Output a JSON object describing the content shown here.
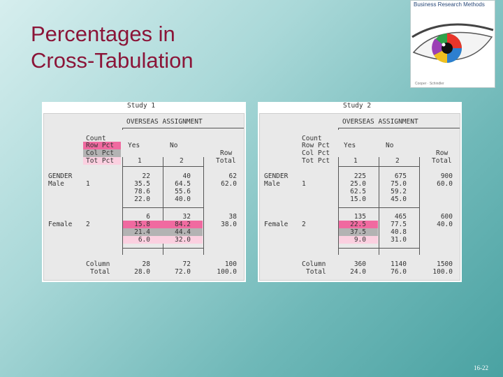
{
  "slide": {
    "title_line1": "Percentages in",
    "title_line2": "Cross-Tabulation",
    "number": "16-22"
  },
  "book": {
    "title": "Business Research Methods",
    "authors": "Cooper · Schindler"
  },
  "colors": {
    "title": "#8b1538",
    "row_pct": "#f06aa0",
    "col_pct": "#b3b3b3",
    "tot_pct": "#fbd0e0"
  },
  "tables": [
    {
      "study": "Study 1",
      "header": "OVERSEAS ASSIGNMENT",
      "legend": [
        "Count",
        "Row Pct",
        "Col Pct",
        "Tot Pct"
      ],
      "col_yes": "Yes",
      "col_no": "No",
      "row_total_l1": "Row",
      "row_total_l2": "Total",
      "code_yes": "1",
      "code_no": "2",
      "gender": "GENDER",
      "male": {
        "label": "Male",
        "code": "1",
        "yes": [
          "22",
          "35.5",
          "78.6",
          "22.0"
        ],
        "no": [
          "40",
          "64.5",
          "55.6",
          "40.0"
        ],
        "total": [
          "62",
          "62.0"
        ]
      },
      "female": {
        "label": "Female",
        "code": "2",
        "yes": [
          "6",
          "15.8",
          "21.4",
          "6.0"
        ],
        "no": [
          "32",
          "84.2",
          "44.4",
          "32.0"
        ],
        "total": [
          "38",
          "38.0"
        ]
      },
      "column_l1": "Column",
      "column_l2": "Total",
      "col_totals": {
        "yes": [
          "28",
          "28.0"
        ],
        "no": [
          "72",
          "72.0"
        ],
        "all": [
          "100",
          "100.0"
        ]
      }
    },
    {
      "study": "Study 2",
      "header": "OVERSEAS ASSIGNMENT",
      "legend": [
        "Count",
        "Row Pct",
        "Col Pct",
        "Tot Pct"
      ],
      "col_yes": "Yes",
      "col_no": "No",
      "row_total_l1": "Row",
      "row_total_l2": "Total",
      "code_yes": "1",
      "code_no": "2",
      "gender": "GENDER",
      "male": {
        "label": "Male",
        "code": "1",
        "yes": [
          "225",
          "25.0",
          "62.5",
          "15.0"
        ],
        "no": [
          "675",
          "75.0",
          "59.2",
          "45.0"
        ],
        "total": [
          "900",
          "60.0"
        ]
      },
      "female": {
        "label": "Female",
        "code": "2",
        "yes": [
          "135",
          "22.5",
          "37.5",
          "9.0"
        ],
        "no": [
          "465",
          "77.5",
          "40.8",
          "31.0"
        ],
        "total": [
          "600",
          "40.0"
        ]
      },
      "column_l1": "Column",
      "column_l2": "Total",
      "col_totals": {
        "yes": [
          "360",
          "24.0"
        ],
        "no": [
          "1140",
          "76.0"
        ],
        "all": [
          "1500",
          "100.0"
        ]
      }
    }
  ]
}
